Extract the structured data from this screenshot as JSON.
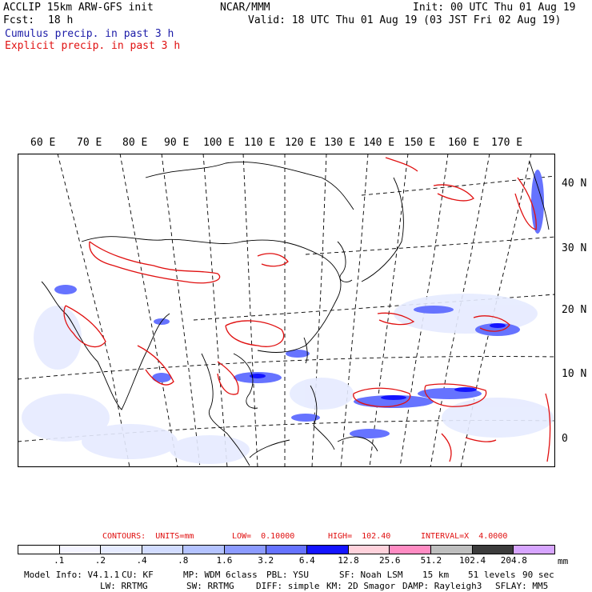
{
  "header": {
    "model": "ACCLIP 15km ARW-GFS init",
    "fcst_label": "Fcst:",
    "fcst_value": "18 h",
    "center": "NCAR/MMM",
    "init": "Init: 00 UTC Thu 01 Aug 19",
    "valid": "Valid: 18 UTC Thu 01 Aug 19 (03 JST Fri 02 Aug 19)",
    "cumulus": "Cumulus precip. in past 3 h",
    "explicit": "Explicit precip. in past 3 h"
  },
  "lon_labels": [
    "60 E",
    "70 E",
    "80 E",
    "90 E",
    "100 E",
    "110 E",
    "120 E",
    "130 E",
    "140 E",
    "150 E",
    "160 E",
    "170 E"
  ],
  "lat_labels": [
    "40 N",
    "30 N",
    "20 N",
    "10 N",
    "0"
  ],
  "contours": {
    "label": "CONTOURS:  UNITS=mm",
    "low": "LOW=  0.10000",
    "high": "HIGH=  102.40",
    "interval": "INTERVAL=X  4.0000"
  },
  "legend": {
    "ticks": [
      ".1",
      ".2",
      ".4",
      ".8",
      "1.6",
      "3.2",
      "6.4",
      "12.8",
      "25.6",
      "51.2",
      "102.4",
      "204.8"
    ],
    "unit": "mm",
    "colors": [
      "#ffffff",
      "#f4f4ff",
      "#e6ebff",
      "#d2dcff",
      "#b4c3ff",
      "#8c9bff",
      "#6673ff",
      "#1414ff",
      "#ffd2dc",
      "#ff8cc3",
      "#bebebe",
      "#3c3c3c",
      "#d7a5ff"
    ]
  },
  "footer": {
    "line1": [
      "Model Info: V4.1.1",
      "CU: KF",
      "MP: WDM 6class",
      "PBL: YSU",
      "SF: Noah LSM",
      "15 km",
      "51 levels",
      "90 sec"
    ],
    "line2": [
      "LW: RRTMG",
      "SW: RRTMG",
      "DIFF: simple",
      "KM: 2D Smagor",
      "DAMP: Rayleigh3",
      "SFLAY: MM5"
    ]
  }
}
